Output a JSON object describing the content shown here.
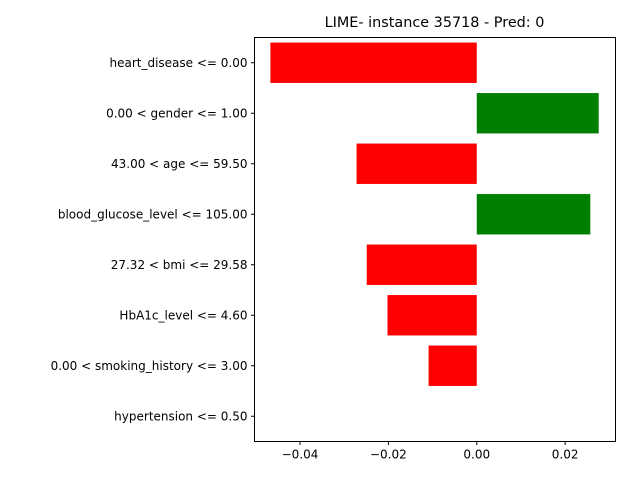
{
  "chart_data": {
    "type": "bar",
    "orientation": "horizontal",
    "title": "LIME- instance 35718 - Pred: 0",
    "xlabel": "",
    "ylabel": "",
    "categories": [
      "heart_disease <= 0.00",
      "0.00 < gender <= 1.00",
      "43.00 < age <= 59.50",
      "blood_glucose_level <= 105.00",
      "27.32 < bmi <= 29.58",
      "HbA1c_level <= 4.60",
      "0.00 < smoking_history <= 3.00",
      "hypertension <= 0.50"
    ],
    "values": [
      -0.0467,
      0.0276,
      -0.0272,
      0.0257,
      -0.0249,
      -0.0202,
      -0.0109,
      0.0
    ],
    "xlim": [
      -0.0503,
      0.0314
    ],
    "xticks": [
      -0.04,
      -0.02,
      0.0,
      0.02
    ],
    "xtick_labels": [
      "−0.04",
      "−0.02",
      "0.00",
      "0.02"
    ],
    "grid": false,
    "colors": {
      "positive": "#008000",
      "negative": "#ff0000"
    }
  }
}
